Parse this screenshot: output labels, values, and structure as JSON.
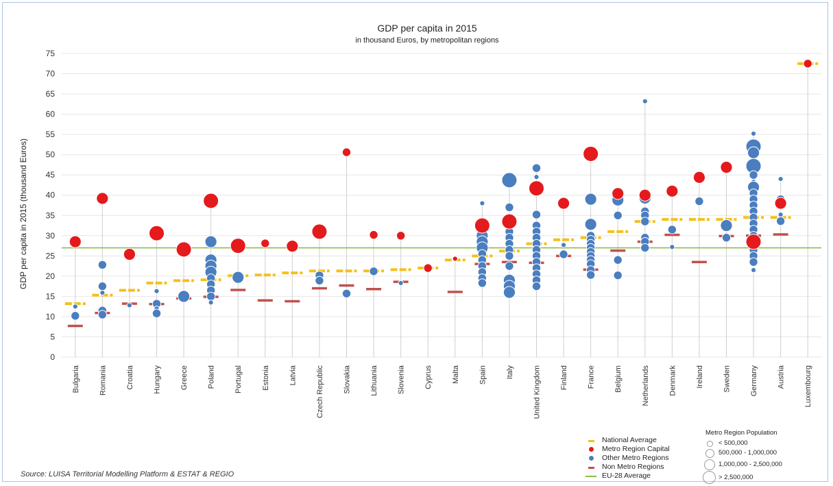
{
  "chart_data": {
    "type": "scatter",
    "title": "GDP per capita in 2015",
    "subtitle": "in thousand Euros, by metropolitan regions",
    "ylabel": "GDP per capita in 2015 (thousand Euros)",
    "xlabel": "",
    "ylim": [
      0,
      75
    ],
    "yticks": [
      0,
      5,
      10,
      15,
      20,
      25,
      30,
      35,
      40,
      45,
      50,
      55,
      60,
      65,
      70,
      75
    ],
    "grid": true,
    "reference_line": {
      "name": "EU-28 Average",
      "value": 27,
      "color": "#8dbb4a"
    },
    "colors": {
      "national_average": "#f5c01a",
      "capital": "#e41a1c",
      "other_metro": "#4a7ebf",
      "non_metro": "#c0504d",
      "stem": "#cfcfcf"
    },
    "categories": [
      "Bulgaria",
      "Romania",
      "Croatia",
      "Hungary",
      "Greece",
      "Poland",
      "Portugal",
      "Estonia",
      "Latvia",
      "Czech Republic",
      "Slovakia",
      "Lithuania",
      "Slovenia",
      "Cyprus",
      "Malta",
      "Spain",
      "Italy",
      "United Kingdom",
      "Finland",
      "France",
      "Belgium",
      "Netherlands",
      "Denmark",
      "Ireland",
      "Sweden",
      "Germany",
      "Austria",
      "Luxembourg"
    ],
    "national_average": [
      13.2,
      15.3,
      16.5,
      18.3,
      18.9,
      19.1,
      20.1,
      20.3,
      20.8,
      21.3,
      21.3,
      21.3,
      21.6,
      22.0,
      24.0,
      25.0,
      26.2,
      28.0,
      29.0,
      29.5,
      31.0,
      33.5,
      34.0,
      34.0,
      34.0,
      34.5,
      34.5,
      72.5
    ],
    "non_metro_regions": [
      7.7,
      10.9,
      13.2,
      13.1,
      14.5,
      14.9,
      16.6,
      14.0,
      13.8,
      17.0,
      17.7,
      16.8,
      18.6,
      null,
      16.1,
      23.0,
      23.5,
      23.3,
      25.0,
      21.6,
      26.3,
      28.5,
      30.2,
      23.5,
      29.9,
      30.0,
      30.3,
      null
    ],
    "metro_region_capital": [
      {
        "value": 28.5,
        "pop": 2
      },
      {
        "value": 39.2,
        "pop": 2
      },
      {
        "value": 25.4,
        "pop": 2
      },
      {
        "value": 30.6,
        "pop": 3
      },
      {
        "value": 26.6,
        "pop": 3
      },
      {
        "value": 38.6,
        "pop": 3
      },
      {
        "value": 27.5,
        "pop": 3
      },
      {
        "value": 28.1,
        "pop": 1
      },
      {
        "value": 27.4,
        "pop": 2
      },
      {
        "value": 31.0,
        "pop": 3
      },
      {
        "value": 50.6,
        "pop": 1
      },
      {
        "value": 30.2,
        "pop": 1
      },
      {
        "value": 30.0,
        "pop": 1
      },
      {
        "value": 22.0,
        "pop": 1
      },
      {
        "value": 24.3,
        "pop": 0
      },
      {
        "value": 32.5,
        "pop": 3
      },
      {
        "value": 33.5,
        "pop": 3
      },
      {
        "value": 41.7,
        "pop": 3
      },
      {
        "value": 38.0,
        "pop": 2
      },
      {
        "value": 50.2,
        "pop": 3
      },
      {
        "value": 40.4,
        "pop": 2
      },
      {
        "value": 40.0,
        "pop": 2
      },
      {
        "value": 41.0,
        "pop": 2
      },
      {
        "value": 44.4,
        "pop": 2
      },
      {
        "value": 46.9,
        "pop": 2
      },
      {
        "value": 28.5,
        "pop": 3
      },
      {
        "value": 38.0,
        "pop": 2
      },
      {
        "value": 72.5,
        "pop": 1
      }
    ],
    "other_metro_regions": [
      [
        {
          "value": 12.5,
          "pop": 0
        },
        {
          "value": 10.2,
          "pop": 1
        }
      ],
      [
        {
          "value": 22.8,
          "pop": 1
        },
        {
          "value": 17.5,
          "pop": 1
        },
        {
          "value": 15.9,
          "pop": 0
        },
        {
          "value": 11.5,
          "pop": 1
        },
        {
          "value": 10.5,
          "pop": 1
        }
      ],
      [
        {
          "value": 12.8,
          "pop": 0
        }
      ],
      [
        {
          "value": 16.3,
          "pop": 0
        },
        {
          "value": 13.2,
          "pop": 1
        },
        {
          "value": 12.0,
          "pop": 0
        },
        {
          "value": 10.8,
          "pop": 1
        }
      ],
      [
        {
          "value": 15.0,
          "pop": 2
        }
      ],
      [
        {
          "value": 28.5,
          "pop": 2
        },
        {
          "value": 24.0,
          "pop": 2
        },
        {
          "value": 22.5,
          "pop": 2
        },
        {
          "value": 21.0,
          "pop": 2
        },
        {
          "value": 19.5,
          "pop": 1
        },
        {
          "value": 18.0,
          "pop": 1
        },
        {
          "value": 16.5,
          "pop": 1
        },
        {
          "value": 15.0,
          "pop": 1
        },
        {
          "value": 13.5,
          "pop": 0
        }
      ],
      [
        {
          "value": 19.7,
          "pop": 2
        }
      ],
      [],
      [],
      [
        {
          "value": 20.2,
          "pop": 1
        },
        {
          "value": 18.9,
          "pop": 1
        }
      ],
      [
        {
          "value": 15.7,
          "pop": 1
        }
      ],
      [
        {
          "value": 21.2,
          "pop": 1
        }
      ],
      [
        {
          "value": 18.3,
          "pop": 0
        }
      ],
      [],
      [],
      [
        {
          "value": 38.0,
          "pop": 0
        },
        {
          "value": 33.0,
          "pop": 1
        },
        {
          "value": 31.5,
          "pop": 1
        },
        {
          "value": 30.0,
          "pop": 2
        },
        {
          "value": 28.5,
          "pop": 2
        },
        {
          "value": 27.0,
          "pop": 2
        },
        {
          "value": 25.5,
          "pop": 1
        },
        {
          "value": 24.0,
          "pop": 1
        },
        {
          "value": 22.5,
          "pop": 1
        },
        {
          "value": 21.0,
          "pop": 1
        },
        {
          "value": 19.5,
          "pop": 1
        },
        {
          "value": 18.3,
          "pop": 1
        }
      ],
      [
        {
          "value": 43.7,
          "pop": 3
        },
        {
          "value": 37.0,
          "pop": 1
        },
        {
          "value": 32.5,
          "pop": 1
        },
        {
          "value": 31.0,
          "pop": 1
        },
        {
          "value": 29.5,
          "pop": 1
        },
        {
          "value": 28.0,
          "pop": 1
        },
        {
          "value": 26.5,
          "pop": 1
        },
        {
          "value": 25.0,
          "pop": 1
        },
        {
          "value": 22.5,
          "pop": 1
        },
        {
          "value": 19.0,
          "pop": 2
        },
        {
          "value": 17.5,
          "pop": 2
        },
        {
          "value": 16.0,
          "pop": 2
        }
      ],
      [
        {
          "value": 46.7,
          "pop": 1
        },
        {
          "value": 44.5,
          "pop": 0
        },
        {
          "value": 41.0,
          "pop": 1
        },
        {
          "value": 35.2,
          "pop": 1
        },
        {
          "value": 32.5,
          "pop": 1
        },
        {
          "value": 31.0,
          "pop": 1
        },
        {
          "value": 29.5,
          "pop": 1
        },
        {
          "value": 28.0,
          "pop": 1
        },
        {
          "value": 26.5,
          "pop": 1
        },
        {
          "value": 25.0,
          "pop": 1
        },
        {
          "value": 23.5,
          "pop": 1
        },
        {
          "value": 22.0,
          "pop": 1
        },
        {
          "value": 20.5,
          "pop": 1
        },
        {
          "value": 19.0,
          "pop": 1
        },
        {
          "value": 17.5,
          "pop": 1
        }
      ],
      [
        {
          "value": 27.7,
          "pop": 0
        },
        {
          "value": 25.4,
          "pop": 1
        }
      ],
      [
        {
          "value": 39.0,
          "pop": 2
        },
        {
          "value": 32.8,
          "pop": 2
        },
        {
          "value": 30.0,
          "pop": 1
        },
        {
          "value": 29.0,
          "pop": 1
        },
        {
          "value": 28.0,
          "pop": 1
        },
        {
          "value": 27.0,
          "pop": 1
        },
        {
          "value": 26.0,
          "pop": 1
        },
        {
          "value": 25.0,
          "pop": 1
        },
        {
          "value": 24.0,
          "pop": 1
        },
        {
          "value": 23.0,
          "pop": 1
        },
        {
          "value": 21.5,
          "pop": 1
        },
        {
          "value": 20.3,
          "pop": 1
        }
      ],
      [
        {
          "value": 38.8,
          "pop": 2
        },
        {
          "value": 35.0,
          "pop": 1
        },
        {
          "value": 24.0,
          "pop": 1
        },
        {
          "value": 20.2,
          "pop": 1
        }
      ],
      [
        {
          "value": 63.2,
          "pop": 0
        },
        {
          "value": 39.3,
          "pop": 2
        },
        {
          "value": 36.0,
          "pop": 1
        },
        {
          "value": 35.0,
          "pop": 1
        },
        {
          "value": 33.5,
          "pop": 1
        },
        {
          "value": 29.5,
          "pop": 1
        },
        {
          "value": 28.5,
          "pop": 1
        },
        {
          "value": 27.0,
          "pop": 1
        }
      ],
      [
        {
          "value": 31.5,
          "pop": 1
        },
        {
          "value": 27.2,
          "pop": 0
        }
      ],
      [
        {
          "value": 38.5,
          "pop": 1
        }
      ],
      [
        {
          "value": 32.5,
          "pop": 2
        },
        {
          "value": 29.5,
          "pop": 1
        }
      ],
      [
        {
          "value": 55.2,
          "pop": 0
        },
        {
          "value": 52.0,
          "pop": 3
        },
        {
          "value": 50.5,
          "pop": 2
        },
        {
          "value": 47.2,
          "pop": 3
        },
        {
          "value": 45.0,
          "pop": 1
        },
        {
          "value": 43.3,
          "pop": 0
        },
        {
          "value": 42.0,
          "pop": 2
        },
        {
          "value": 40.5,
          "pop": 1
        },
        {
          "value": 39.0,
          "pop": 1
        },
        {
          "value": 37.5,
          "pop": 1
        },
        {
          "value": 36.0,
          "pop": 1
        },
        {
          "value": 34.5,
          "pop": 1
        },
        {
          "value": 33.0,
          "pop": 1
        },
        {
          "value": 31.5,
          "pop": 1
        },
        {
          "value": 30.0,
          "pop": 1
        },
        {
          "value": 28.0,
          "pop": 1
        },
        {
          "value": 26.5,
          "pop": 1
        },
        {
          "value": 25.0,
          "pop": 1
        },
        {
          "value": 23.5,
          "pop": 1
        },
        {
          "value": 21.5,
          "pop": 0
        }
      ],
      [
        {
          "value": 44.0,
          "pop": 0
        },
        {
          "value": 39.0,
          "pop": 1
        },
        {
          "value": 35.2,
          "pop": 0
        },
        {
          "value": 33.6,
          "pop": 1
        }
      ],
      []
    ]
  },
  "legend": {
    "series": [
      "National Average",
      "Metro Region Capital",
      "Other Metro Regions",
      "Non Metro Regions",
      "EU-28 Average"
    ],
    "population_title": "Metro Region Population",
    "population_sizes": [
      "< 500,000",
      "500,000 - 1,000,000",
      "1,000,000 - 2,500,000",
      "> 2,500,000"
    ]
  },
  "source": "Source: LUISA Territorial Modelling Platform & ESTAT & REGIO"
}
